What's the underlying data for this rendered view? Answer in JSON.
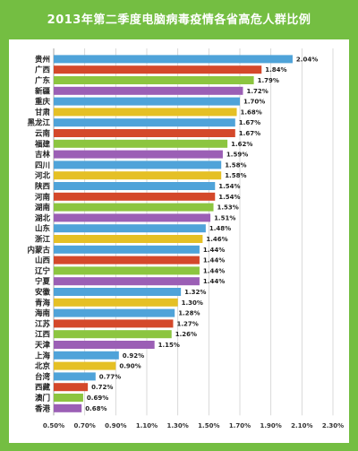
{
  "title": "2013年第二季度电脑病毒疫情各省高危人群比例",
  "chart_data": {
    "type": "bar",
    "orientation": "horizontal",
    "title": "2013年第二季度电脑病毒疫情各省高危人群比例",
    "xlim": [
      0.5,
      2.3
    ],
    "xticks": [
      "0.50%",
      "0.70%",
      "0.90%",
      "1.10%",
      "1.30%",
      "1.50%",
      "1.70%",
      "1.90%",
      "2.10%",
      "2.30%"
    ],
    "grid": true,
    "categories": [
      "贵州",
      "广西",
      "广东",
      "新疆",
      "重庆",
      "甘肃",
      "黑龙江",
      "云南",
      "福建",
      "吉林",
      "四川",
      "河北",
      "陕西",
      "河南",
      "湖南",
      "湖北",
      "山东",
      "浙江",
      "内蒙古",
      "山西",
      "辽宁",
      "宁夏",
      "安徽",
      "青海",
      "海南",
      "江苏",
      "江西",
      "天津",
      "上海",
      "北京",
      "台湾",
      "西藏",
      "澳门",
      "香港"
    ],
    "values": [
      2.04,
      1.84,
      1.79,
      1.72,
      1.7,
      1.68,
      1.67,
      1.67,
      1.62,
      1.59,
      1.58,
      1.58,
      1.54,
      1.54,
      1.53,
      1.51,
      1.48,
      1.46,
      1.44,
      1.44,
      1.44,
      1.44,
      1.32,
      1.3,
      1.28,
      1.27,
      1.26,
      1.15,
      0.92,
      0.9,
      0.77,
      0.72,
      0.69,
      0.68
    ],
    "value_labels": [
      "2.04%",
      "1.84%",
      "1.79%",
      "1.72%",
      "1.70%",
      "1.68%",
      "1.67%",
      "1.67%",
      "1.62%",
      "1.59%",
      "1.58%",
      "1.58%",
      "1.54%",
      "1.54%",
      "1.53%",
      "1.51%",
      "1.48%",
      "1.46%",
      "1.44%",
      "1.44%",
      "1.44%",
      "1.44%",
      "1.32%",
      "1.30%",
      "1.28%",
      "1.27%",
      "1.26%",
      "1.15%",
      "0.92%",
      "0.90%",
      "0.77%",
      "0.72%",
      "0.69%",
      "0.68%"
    ],
    "colors": [
      "#4fa3d9",
      "#d4482a",
      "#8cc540",
      "#9b5fb5",
      "#4fa3d9",
      "#e5c025",
      "#4fa3d9",
      "#d4482a",
      "#8cc540",
      "#9b5fb5",
      "#4fa3d9",
      "#e5c025",
      "#4fa3d9",
      "#d4482a",
      "#8cc540",
      "#9b5fb5",
      "#4fa3d9",
      "#e5c025",
      "#4fa3d9",
      "#d4482a",
      "#8cc540",
      "#9b5fb5",
      "#4fa3d9",
      "#e5c025",
      "#4fa3d9",
      "#d4482a",
      "#8cc540",
      "#9b5fb5",
      "#4fa3d9",
      "#e5c025",
      "#4fa3d9",
      "#d4482a",
      "#8cc540",
      "#9b5fb5"
    ]
  }
}
